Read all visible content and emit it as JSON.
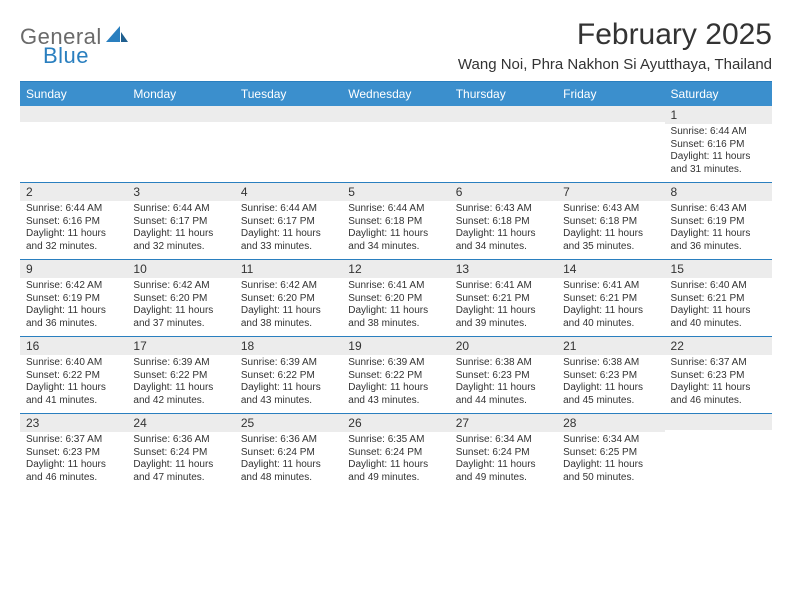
{
  "logo": {
    "text1": "General",
    "text2": "Blue"
  },
  "title": "February 2025",
  "location": "Wang Noi, Phra Nakhon Si Ayutthaya, Thailand",
  "colors": {
    "headerBar": "#3b8fcd",
    "rule": "#2a7fbf",
    "dayStripe": "#ececec",
    "text": "#333333",
    "logoGrey": "#6a6a6a",
    "logoBlue": "#2a7fbf",
    "background": "#ffffff"
  },
  "typography": {
    "title_fontsize": 30,
    "location_fontsize": 15,
    "header_fontsize": 12,
    "daynum_fontsize": 12,
    "body_fontsize": 10
  },
  "dayHeaders": [
    "Sunday",
    "Monday",
    "Tuesday",
    "Wednesday",
    "Thursday",
    "Friday",
    "Saturday"
  ],
  "weeks": [
    [
      {
        "n": "",
        "lines": []
      },
      {
        "n": "",
        "lines": []
      },
      {
        "n": "",
        "lines": []
      },
      {
        "n": "",
        "lines": []
      },
      {
        "n": "",
        "lines": []
      },
      {
        "n": "",
        "lines": []
      },
      {
        "n": "1",
        "lines": [
          "Sunrise: 6:44 AM",
          "Sunset: 6:16 PM",
          "Daylight: 11 hours and 31 minutes."
        ]
      }
    ],
    [
      {
        "n": "2",
        "lines": [
          "Sunrise: 6:44 AM",
          "Sunset: 6:16 PM",
          "Daylight: 11 hours and 32 minutes."
        ]
      },
      {
        "n": "3",
        "lines": [
          "Sunrise: 6:44 AM",
          "Sunset: 6:17 PM",
          "Daylight: 11 hours and 32 minutes."
        ]
      },
      {
        "n": "4",
        "lines": [
          "Sunrise: 6:44 AM",
          "Sunset: 6:17 PM",
          "Daylight: 11 hours and 33 minutes."
        ]
      },
      {
        "n": "5",
        "lines": [
          "Sunrise: 6:44 AM",
          "Sunset: 6:18 PM",
          "Daylight: 11 hours and 34 minutes."
        ]
      },
      {
        "n": "6",
        "lines": [
          "Sunrise: 6:43 AM",
          "Sunset: 6:18 PM",
          "Daylight: 11 hours and 34 minutes."
        ]
      },
      {
        "n": "7",
        "lines": [
          "Sunrise: 6:43 AM",
          "Sunset: 6:18 PM",
          "Daylight: 11 hours and 35 minutes."
        ]
      },
      {
        "n": "8",
        "lines": [
          "Sunrise: 6:43 AM",
          "Sunset: 6:19 PM",
          "Daylight: 11 hours and 36 minutes."
        ]
      }
    ],
    [
      {
        "n": "9",
        "lines": [
          "Sunrise: 6:42 AM",
          "Sunset: 6:19 PM",
          "Daylight: 11 hours and 36 minutes."
        ]
      },
      {
        "n": "10",
        "lines": [
          "Sunrise: 6:42 AM",
          "Sunset: 6:20 PM",
          "Daylight: 11 hours and 37 minutes."
        ]
      },
      {
        "n": "11",
        "lines": [
          "Sunrise: 6:42 AM",
          "Sunset: 6:20 PM",
          "Daylight: 11 hours and 38 minutes."
        ]
      },
      {
        "n": "12",
        "lines": [
          "Sunrise: 6:41 AM",
          "Sunset: 6:20 PM",
          "Daylight: 11 hours and 38 minutes."
        ]
      },
      {
        "n": "13",
        "lines": [
          "Sunrise: 6:41 AM",
          "Sunset: 6:21 PM",
          "Daylight: 11 hours and 39 minutes."
        ]
      },
      {
        "n": "14",
        "lines": [
          "Sunrise: 6:41 AM",
          "Sunset: 6:21 PM",
          "Daylight: 11 hours and 40 minutes."
        ]
      },
      {
        "n": "15",
        "lines": [
          "Sunrise: 6:40 AM",
          "Sunset: 6:21 PM",
          "Daylight: 11 hours and 40 minutes."
        ]
      }
    ],
    [
      {
        "n": "16",
        "lines": [
          "Sunrise: 6:40 AM",
          "Sunset: 6:22 PM",
          "Daylight: 11 hours and 41 minutes."
        ]
      },
      {
        "n": "17",
        "lines": [
          "Sunrise: 6:39 AM",
          "Sunset: 6:22 PM",
          "Daylight: 11 hours and 42 minutes."
        ]
      },
      {
        "n": "18",
        "lines": [
          "Sunrise: 6:39 AM",
          "Sunset: 6:22 PM",
          "Daylight: 11 hours and 43 minutes."
        ]
      },
      {
        "n": "19",
        "lines": [
          "Sunrise: 6:39 AM",
          "Sunset: 6:22 PM",
          "Daylight: 11 hours and 43 minutes."
        ]
      },
      {
        "n": "20",
        "lines": [
          "Sunrise: 6:38 AM",
          "Sunset: 6:23 PM",
          "Daylight: 11 hours and 44 minutes."
        ]
      },
      {
        "n": "21",
        "lines": [
          "Sunrise: 6:38 AM",
          "Sunset: 6:23 PM",
          "Daylight: 11 hours and 45 minutes."
        ]
      },
      {
        "n": "22",
        "lines": [
          "Sunrise: 6:37 AM",
          "Sunset: 6:23 PM",
          "Daylight: 11 hours and 46 minutes."
        ]
      }
    ],
    [
      {
        "n": "23",
        "lines": [
          "Sunrise: 6:37 AM",
          "Sunset: 6:23 PM",
          "Daylight: 11 hours and 46 minutes."
        ]
      },
      {
        "n": "24",
        "lines": [
          "Sunrise: 6:36 AM",
          "Sunset: 6:24 PM",
          "Daylight: 11 hours and 47 minutes."
        ]
      },
      {
        "n": "25",
        "lines": [
          "Sunrise: 6:36 AM",
          "Sunset: 6:24 PM",
          "Daylight: 11 hours and 48 minutes."
        ]
      },
      {
        "n": "26",
        "lines": [
          "Sunrise: 6:35 AM",
          "Sunset: 6:24 PM",
          "Daylight: 11 hours and 49 minutes."
        ]
      },
      {
        "n": "27",
        "lines": [
          "Sunrise: 6:34 AM",
          "Sunset: 6:24 PM",
          "Daylight: 11 hours and 49 minutes."
        ]
      },
      {
        "n": "28",
        "lines": [
          "Sunrise: 6:34 AM",
          "Sunset: 6:25 PM",
          "Daylight: 11 hours and 50 minutes."
        ]
      },
      {
        "n": "",
        "lines": []
      }
    ]
  ]
}
